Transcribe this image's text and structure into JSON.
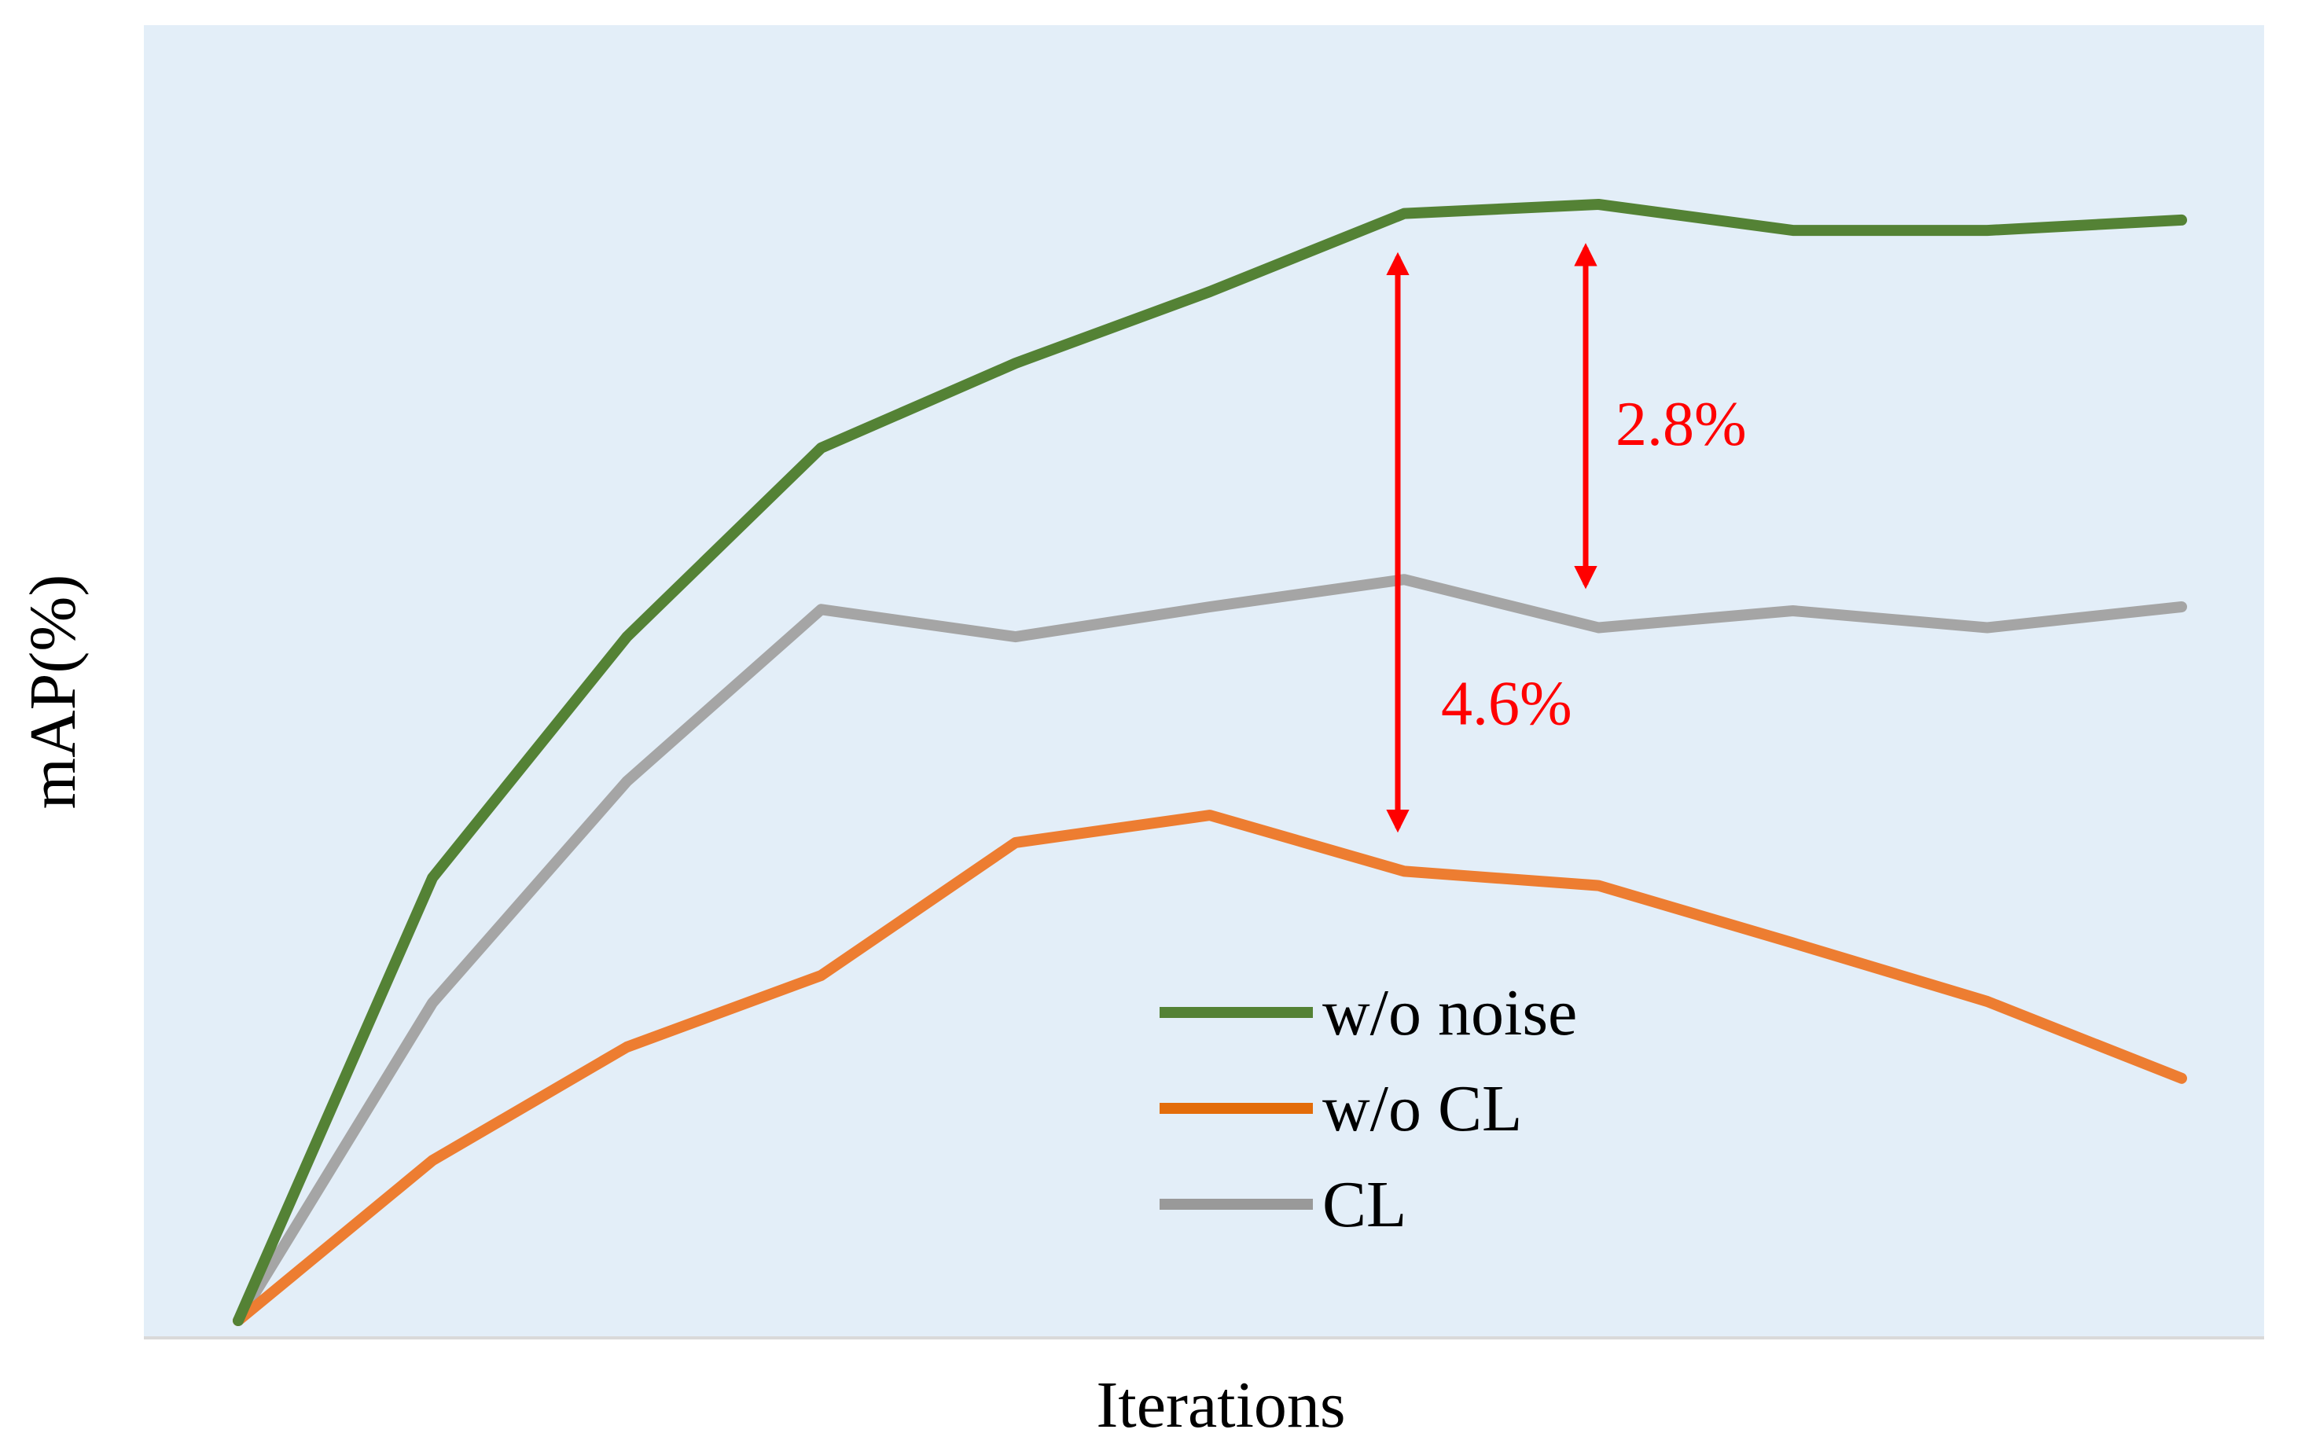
{
  "chart_data": {
    "type": "line",
    "title": "",
    "xlabel": "Iterations",
    "ylabel": "mAP(%)",
    "x": [
      0,
      1,
      2,
      3,
      4,
      5,
      6,
      7,
      8,
      9,
      10
    ],
    "ylim": [
      0,
      100
    ],
    "grid": false,
    "legend_position": "bottom-center",
    "background_color": "#e3eef8",
    "series": [
      {
        "name": "w/o noise",
        "color": "#548235",
        "legend_color": "#548235",
        "values": [
          0,
          34,
          52.5,
          67,
          73.5,
          79,
          85,
          85.7,
          83.7,
          83.7,
          84.5
        ]
      },
      {
        "name": "w/o CL",
        "color": "#ed7d31",
        "legend_color": "#e36c0a",
        "values": [
          0,
          12.3,
          21,
          26.5,
          36.7,
          38.8,
          34.5,
          33.4,
          29,
          24.5,
          18.6
        ]
      },
      {
        "name": "CL",
        "color": "#a5a5a5",
        "legend_color": "#999999",
        "values": [
          0,
          24.4,
          41.4,
          54.6,
          52.5,
          54.8,
          56.9,
          53.2,
          54.5,
          53.2,
          54.8
        ]
      }
    ],
    "annotations": [
      {
        "text": "4.6%",
        "from_series": "w/o noise",
        "to_series": "w/o CL",
        "at_x": 6,
        "color": "#ff0000"
      },
      {
        "text": "2.8%",
        "from_series": "w/o noise",
        "to_series": "CL",
        "at_x": 7,
        "color": "#ff0000"
      }
    ]
  }
}
